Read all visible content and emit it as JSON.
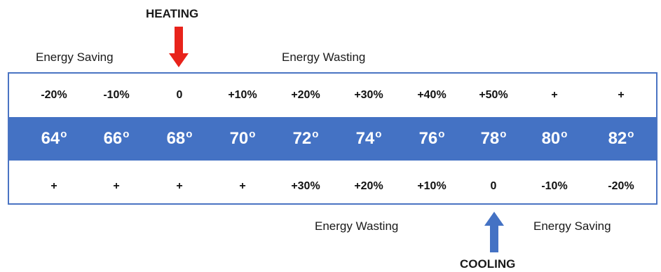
{
  "labels": {
    "heating": "HEATING",
    "cooling": "COOLING",
    "top_left": "Energy Saving",
    "top_right": "Energy Wasting",
    "bottom_left": "Energy Wasting",
    "bottom_right": "Energy Saving"
  },
  "heating_row": [
    "-20%",
    "-10%",
    "0",
    "+10%",
    "+20%",
    "+30%",
    "+40%",
    "+50%",
    "+",
    "+"
  ],
  "temperatures": [
    "64",
    "66",
    "68",
    "70",
    "72",
    "74",
    "76",
    "78",
    "80",
    "82"
  ],
  "degree_mark": "o",
  "cooling_row": [
    "+",
    "+",
    "+",
    "+",
    "+30%",
    "+20%",
    "+10%",
    "0",
    "-10%",
    "-20%"
  ],
  "colors": {
    "band": "#4472c4",
    "border": "#4a74c3",
    "heating_arrow": "#e8231b",
    "cooling_arrow": "#4472c4"
  }
}
